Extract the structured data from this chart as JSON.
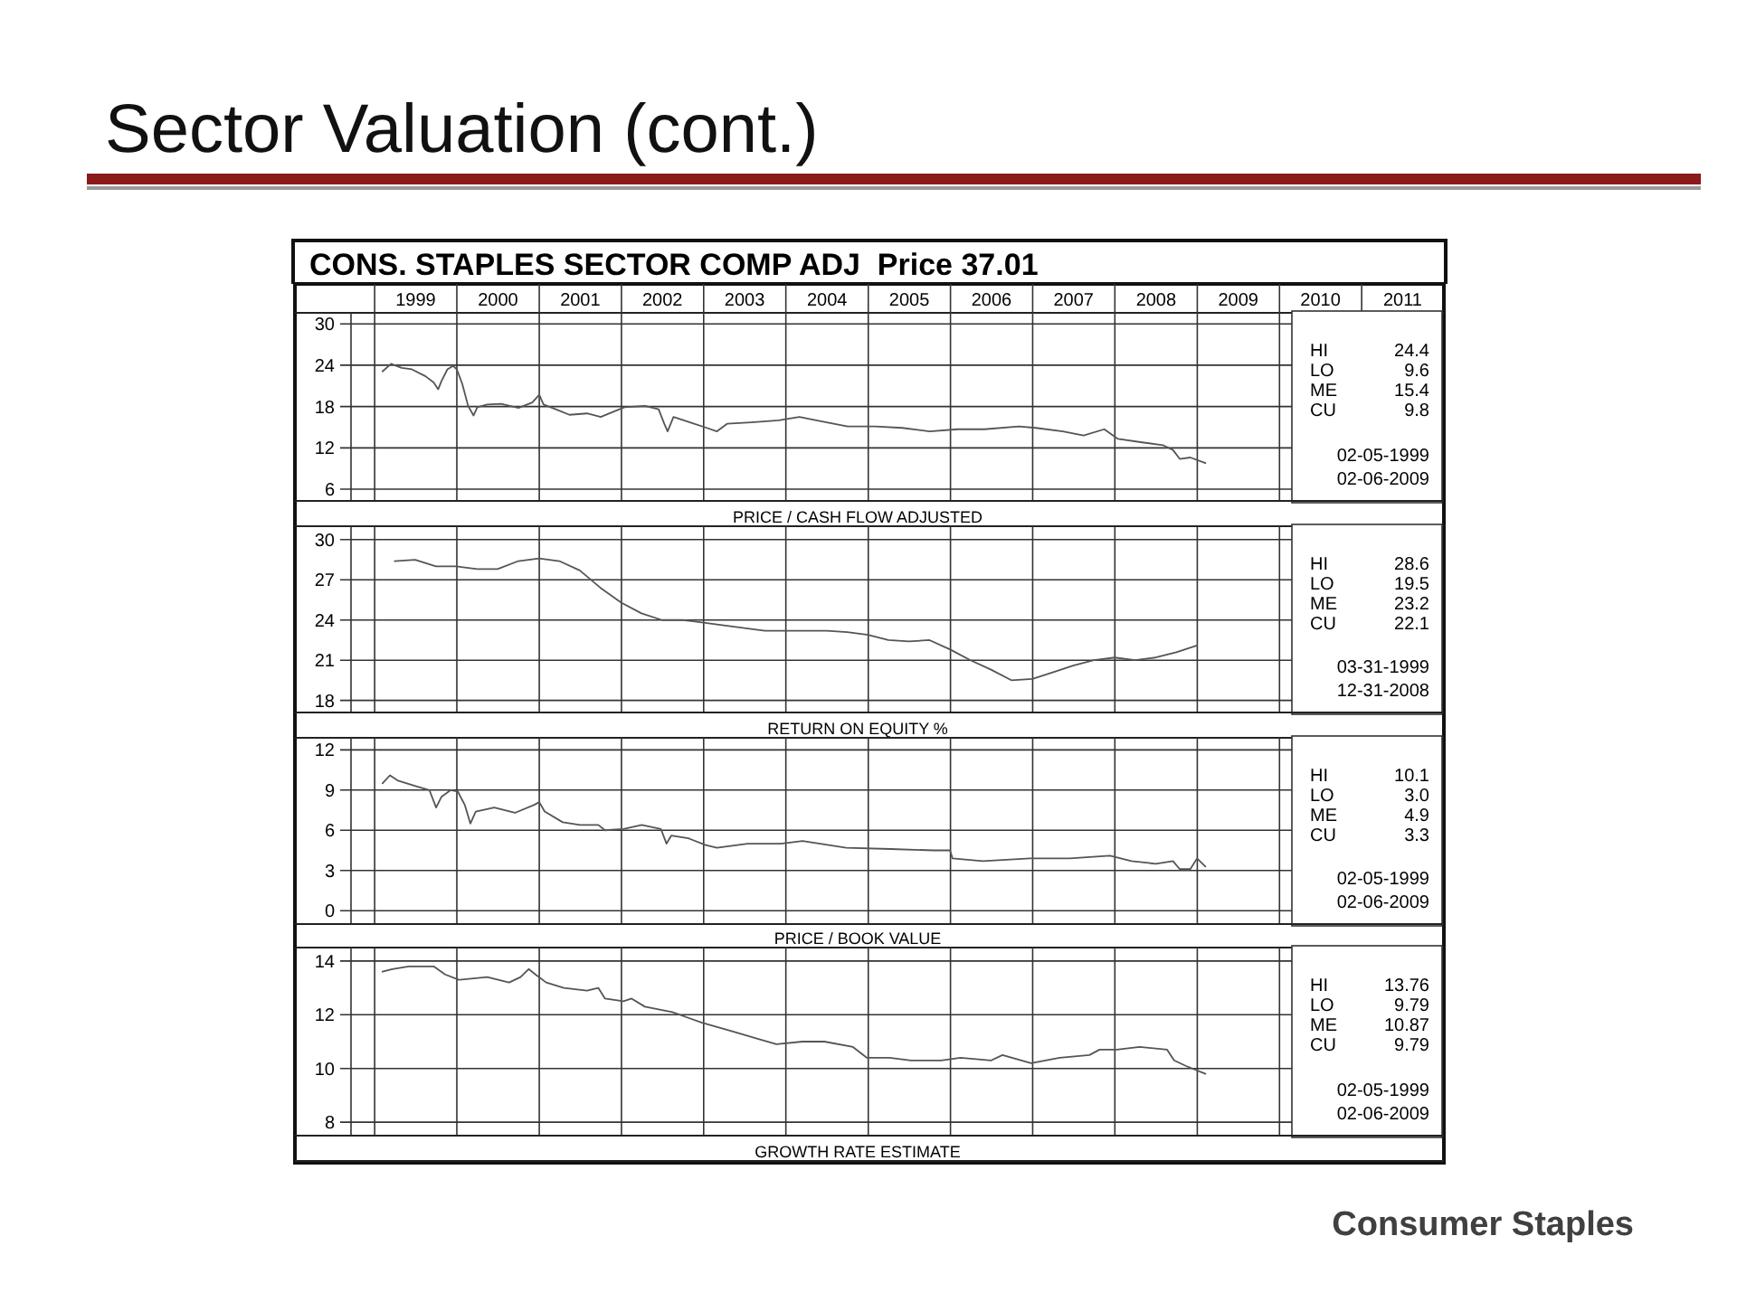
{
  "chart_data": [
    {
      "type": "line",
      "title": "Sector Valuation (cont.)",
      "subtitle": "CONS. STAPLES SECTOR COMP ADJ  Price 37.01",
      "xlabel": "PRICE / CASH FLOW ADJUSTED",
      "grid": true,
      "xlim": [
        "1998-01-12",
        "2012-01-01"
      ],
      "xticks": [
        {
          "value": "1999-01-01",
          "label": null
        },
        {
          "value": "1999-07-02",
          "label": "1999"
        },
        {
          "value": "2000-01-01",
          "label": null
        },
        {
          "value": "2000-07-02",
          "label": "2000"
        },
        {
          "value": "2001-01-01",
          "label": null
        },
        {
          "value": "2001-07-02",
          "label": "2001"
        },
        {
          "value": "2002-01-01",
          "label": null
        },
        {
          "value": "2002-07-02",
          "label": "2002"
        },
        {
          "value": "2003-01-01",
          "label": null
        },
        {
          "value": "2003-07-02",
          "label": "2003"
        },
        {
          "value": "2004-01-01",
          "label": null
        },
        {
          "value": "2004-07-02",
          "label": "2004"
        },
        {
          "value": "2005-01-01",
          "label": null
        },
        {
          "value": "2005-07-02",
          "label": "2005"
        },
        {
          "value": "2006-01-01",
          "label": null
        },
        {
          "value": "2006-07-02",
          "label": "2006"
        },
        {
          "value": "2007-01-01",
          "label": null
        },
        {
          "value": "2007-07-02",
          "label": "2007"
        },
        {
          "value": "2008-01-01",
          "label": null
        },
        {
          "value": "2008-07-02",
          "label": "2008"
        },
        {
          "value": "2009-01-01",
          "label": null
        },
        {
          "value": "2009-07-02",
          "label": "2009"
        },
        {
          "value": "2010-01-01",
          "label": null
        },
        {
          "value": "2010-07-02",
          "label": "2010"
        },
        {
          "value": "2011-01-01",
          "label": null
        },
        {
          "value": "2011-07-02",
          "label": "2011"
        }
      ],
      "ylim": [
        4.3,
        31.6
      ],
      "yticks": [
        6,
        12,
        18,
        24,
        30
      ],
      "annotations": [
        "HI 24.4",
        "LO 9.6",
        "ME 15.4",
        "CU 9.8",
        "02-05-1999",
        "02-06-2009"
      ],
      "series": [
        {
          "color": "#555555",
          "x": [
            "1999-02-05",
            "1999-03-15",
            "1999-05-01",
            "1999-06-15",
            "1999-08-15",
            "1999-09-20",
            "1999-10-10",
            "1999-10-25",
            "1999-11-20",
            "1999-12-15",
            "2000-01-01",
            "2000-01-25",
            "2000-02-20",
            "2000-03-15",
            "2000-04-01",
            "2000-05-15",
            "2000-07-15",
            "2000-10-01",
            "2000-12-01",
            "2001-01-01",
            "2001-01-20",
            "2001-03-15",
            "2001-05-15",
            "2001-08-01",
            "2001-10-01",
            "2001-12-01",
            "2002-01-15",
            "2002-04-15",
            "2002-06-15",
            "2002-07-10",
            "2002-07-25",
            "2002-08-20",
            "2002-11-01",
            "2003-01-15",
            "2003-03-01",
            "2003-04-15",
            "2003-08-01",
            "2003-12-01",
            "2004-03-01",
            "2004-05-15",
            "2004-10-01",
            "2005-02-01",
            "2005-06-01",
            "2005-10-01",
            "2006-02-01",
            "2006-06-01",
            "2006-11-01",
            "2007-01-15",
            "2007-05-15",
            "2007-08-15",
            "2007-11-15",
            "2008-01-15",
            "2008-05-01",
            "2008-08-01",
            "2008-09-15",
            "2008-10-15",
            "2008-12-01",
            "2009-02-06"
          ],
          "values": [
            23.1,
            24.2,
            23.6,
            23.4,
            22.4,
            21.5,
            20.5,
            21.7,
            23.4,
            23.9,
            23.4,
            21.3,
            18.1,
            16.7,
            17.9,
            18.3,
            18.4,
            17.8,
            18.6,
            19.7,
            18.3,
            17.6,
            16.8,
            17.0,
            16.5,
            17.3,
            17.9,
            18.1,
            17.6,
            15.5,
            14.4,
            16.5,
            15.7,
            14.9,
            14.4,
            15.5,
            15.7,
            16.0,
            16.5,
            16.0,
            15.1,
            15.1,
            14.9,
            14.4,
            14.7,
            14.7,
            15.1,
            14.9,
            14.4,
            13.8,
            14.7,
            13.3,
            12.8,
            12.4,
            11.7,
            10.4,
            10.6,
            9.8
          ]
        }
      ]
    },
    {
      "type": "line",
      "xlabel": "RETURN ON EQUITY %",
      "grid": true,
      "tick_labels": "y",
      "xlim": [
        "1998-01-12",
        "2012-01-01"
      ],
      "xticks": [
        {
          "value": "1999-01-01",
          "label": null
        },
        {
          "value": "2000-01-01",
          "label": null
        },
        {
          "value": "2001-01-01",
          "label": null
        },
        {
          "value": "2002-01-01",
          "label": null
        },
        {
          "value": "2003-01-01",
          "label": null
        },
        {
          "value": "2004-01-01",
          "label": null
        },
        {
          "value": "2005-01-01",
          "label": null
        },
        {
          "value": "2006-01-01",
          "label": null
        },
        {
          "value": "2007-01-01",
          "label": null
        },
        {
          "value": "2008-01-01",
          "label": null
        },
        {
          "value": "2009-01-01",
          "label": null
        },
        {
          "value": "2010-01-01",
          "label": null
        }
      ],
      "ylim": [
        17.1,
        31.0
      ],
      "yticks": [
        18,
        21,
        24,
        27,
        30
      ],
      "annotations": [
        "HI 28.6",
        "LO 19.5",
        "ME 23.2",
        "CU 22.1",
        "03-31-1999",
        "12-31-2008"
      ],
      "series": [
        {
          "color": "#555555",
          "x": [
            "1999-03-31",
            "1999-06-30",
            "1999-09-30",
            "1999-12-31",
            "2000-03-31",
            "2000-06-30",
            "2000-09-30",
            "2000-12-31",
            "2001-03-31",
            "2001-06-30",
            "2001-09-30",
            "2001-12-31",
            "2002-03-31",
            "2002-06-30",
            "2002-09-30",
            "2002-12-31",
            "2003-03-31",
            "2003-06-30",
            "2003-09-30",
            "2003-12-31",
            "2004-03-31",
            "2004-06-30",
            "2004-09-30",
            "2004-12-31",
            "2005-03-31",
            "2005-06-30",
            "2005-09-30",
            "2005-12-31",
            "2006-03-31",
            "2006-06-30",
            "2006-09-30",
            "2006-12-31",
            "2007-03-31",
            "2007-06-30",
            "2007-09-30",
            "2007-12-31",
            "2008-03-31",
            "2008-06-30",
            "2008-09-30",
            "2008-12-31"
          ],
          "values": [
            28.4,
            28.5,
            28.0,
            28.0,
            27.8,
            27.8,
            28.4,
            28.6,
            28.4,
            27.7,
            26.4,
            25.3,
            24.5,
            24.0,
            24.0,
            23.8,
            23.6,
            23.4,
            23.2,
            23.2,
            23.2,
            23.2,
            23.1,
            22.9,
            22.5,
            22.4,
            22.5,
            21.8,
            21.0,
            20.3,
            19.5,
            19.6,
            20.1,
            20.6,
            21.0,
            21.2,
            21.0,
            21.2,
            21.6,
            22.1
          ]
        }
      ]
    },
    {
      "type": "line",
      "xlabel": "PRICE / BOOK VALUE",
      "grid": true,
      "tick_labels": "y",
      "xlim": [
        "1998-01-12",
        "2012-01-01"
      ],
      "xticks": [
        {
          "value": "1999-01-01",
          "label": null
        },
        {
          "value": "2000-01-01",
          "label": null
        },
        {
          "value": "2001-01-01",
          "label": null
        },
        {
          "value": "2002-01-01",
          "label": null
        },
        {
          "value": "2003-01-01",
          "label": null
        },
        {
          "value": "2004-01-01",
          "label": null
        },
        {
          "value": "2005-01-01",
          "label": null
        },
        {
          "value": "2006-01-01",
          "label": null
        },
        {
          "value": "2007-01-01",
          "label": null
        },
        {
          "value": "2008-01-01",
          "label": null
        },
        {
          "value": "2009-01-01",
          "label": null
        },
        {
          "value": "2010-01-01",
          "label": null
        }
      ],
      "ylim": [
        -1.0,
        12.9
      ],
      "yticks": [
        0,
        3,
        6,
        9,
        12
      ],
      "annotations": [
        "HI 10.1",
        "LO 3.0",
        "ME 4.9",
        "CU 3.3",
        "02-05-1999",
        "02-06-2009"
      ],
      "series": [
        {
          "color": "#555555",
          "x": [
            "1999-02-05",
            "1999-03-10",
            "1999-04-15",
            "1999-07-01",
            "1999-09-01",
            "1999-10-01",
            "1999-10-25",
            "1999-12-05",
            "2000-01-05",
            "2000-02-05",
            "2000-03-01",
            "2000-03-25",
            "2000-06-15",
            "2000-09-15",
            "2000-12-10",
            "2001-01-01",
            "2001-01-25",
            "2001-04-15",
            "2001-07-01",
            "2001-09-20",
            "2001-10-20",
            "2002-01-10",
            "2002-04-01",
            "2002-06-25",
            "2002-07-20",
            "2002-08-10",
            "2002-10-25",
            "2003-01-10",
            "2003-03-01",
            "2003-07-15",
            "2003-12-10",
            "2004-03-15",
            "2004-09-25",
            "2005-04-10",
            "2005-10-20",
            "2005-12-30",
            "2006-01-10",
            "2006-05-25",
            "2006-12-20",
            "2007-06-15",
            "2007-12-10",
            "2008-03-15",
            "2008-06-30",
            "2008-09-15",
            "2008-10-15",
            "2008-12-01",
            "2008-12-31",
            "2009-02-06"
          ],
          "values": [
            9.5,
            10.1,
            9.7,
            9.3,
            9.0,
            7.7,
            8.5,
            9.0,
            8.9,
            7.9,
            6.5,
            7.4,
            7.7,
            7.3,
            7.9,
            8.1,
            7.4,
            6.6,
            6.4,
            6.4,
            6.0,
            6.1,
            6.4,
            6.1,
            5.0,
            5.6,
            5.4,
            4.9,
            4.7,
            5.0,
            5.0,
            5.2,
            4.7,
            4.6,
            4.5,
            4.5,
            3.9,
            3.7,
            3.9,
            3.9,
            4.1,
            3.7,
            3.5,
            3.7,
            3.1,
            3.1,
            3.9,
            3.3
          ]
        }
      ]
    },
    {
      "type": "line",
      "xlabel": "GROWTH RATE ESTIMATE",
      "grid": true,
      "tick_labels": "y",
      "xlim": [
        "1998-01-12",
        "2012-01-01"
      ],
      "xticks": [
        {
          "value": "1999-01-01",
          "label": null
        },
        {
          "value": "2000-01-01",
          "label": null
        },
        {
          "value": "2001-01-01",
          "label": null
        },
        {
          "value": "2002-01-01",
          "label": null
        },
        {
          "value": "2003-01-01",
          "label": null
        },
        {
          "value": "2004-01-01",
          "label": null
        },
        {
          "value": "2005-01-01",
          "label": null
        },
        {
          "value": "2006-01-01",
          "label": null
        },
        {
          "value": "2007-01-01",
          "label": null
        },
        {
          "value": "2008-01-01",
          "label": null
        },
        {
          "value": "2009-01-01",
          "label": null
        },
        {
          "value": "2010-01-01",
          "label": null
        }
      ],
      "ylim": [
        7.5,
        14.5
      ],
      "yticks": [
        8,
        10,
        12,
        14
      ],
      "annotations": [
        "HI 13.76",
        "LO 9.79",
        "ME 10.87",
        "CU 9.79",
        "02-05-1999",
        "02-06-2009",
        "Consumer Staples"
      ],
      "series": [
        {
          "color": "#555555",
          "x": [
            "1999-02-05",
            "1999-03-20",
            "1999-06-01",
            "1999-09-20",
            "1999-11-10",
            "2000-01-10",
            "2000-05-15",
            "2000-08-20",
            "2000-10-10",
            "2000-11-15",
            "2000-12-15",
            "2001-02-01",
            "2001-04-20",
            "2001-08-01",
            "2001-09-20",
            "2001-10-20",
            "2002-01-10",
            "2002-02-15",
            "2002-04-15",
            "2002-08-15",
            "2002-12-25",
            "2003-05-01",
            "2003-09-01",
            "2003-11-20",
            "2004-03-15",
            "2004-06-20",
            "2004-10-25",
            "2004-12-25",
            "2005-04-05",
            "2005-07-10",
            "2005-11-20",
            "2006-02-15",
            "2006-07-01",
            "2006-08-20",
            "2006-12-25",
            "2007-05-01",
            "2007-09-10",
            "2007-10-25",
            "2008-01-10",
            "2008-04-20",
            "2008-08-20",
            "2008-09-20",
            "2008-11-10",
            "2009-02-06"
          ],
          "values": [
            13.6,
            13.7,
            13.8,
            13.8,
            13.5,
            13.3,
            13.4,
            13.2,
            13.4,
            13.7,
            13.5,
            13.2,
            13.0,
            12.9,
            13.0,
            12.6,
            12.5,
            12.6,
            12.3,
            12.1,
            11.7,
            11.4,
            11.1,
            10.9,
            11.0,
            11.0,
            10.8,
            10.4,
            10.4,
            10.3,
            10.3,
            10.4,
            10.3,
            10.5,
            10.2,
            10.4,
            10.5,
            10.7,
            10.7,
            10.8,
            10.7,
            10.3,
            10.1,
            9.8
          ]
        }
      ]
    }
  ]
}
